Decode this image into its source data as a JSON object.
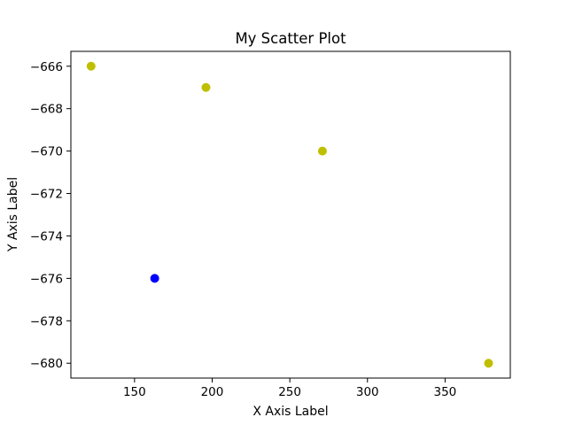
{
  "chart_data": {
    "type": "scatter",
    "title": "My Scatter Plot",
    "xlabel": "X Axis Label",
    "ylabel": "Y Axis Label",
    "xlim": [
      109,
      392
    ],
    "ylim": [
      -680.7,
      -665.3
    ],
    "xticks": [
      150,
      200,
      250,
      300,
      350
    ],
    "yticks": [
      -666,
      -668,
      -670,
      -672,
      -674,
      -676,
      -678,
      -680
    ],
    "xtick_labels": [
      "150",
      "200",
      "250",
      "300",
      "350"
    ],
    "ytick_labels": [
      "−666",
      "−668",
      "−670",
      "−672",
      "−674",
      "−676",
      "−678",
      "−680"
    ],
    "grid": false,
    "points": [
      {
        "x": 122,
        "y": -666,
        "color": "#bfbf00"
      },
      {
        "x": 196,
        "y": -667,
        "color": "#bfbf00"
      },
      {
        "x": 271,
        "y": -670,
        "color": "#bfbf00"
      },
      {
        "x": 163,
        "y": -676,
        "color": "#0000ff"
      },
      {
        "x": 378,
        "y": -680,
        "color": "#bfbf00"
      }
    ]
  }
}
